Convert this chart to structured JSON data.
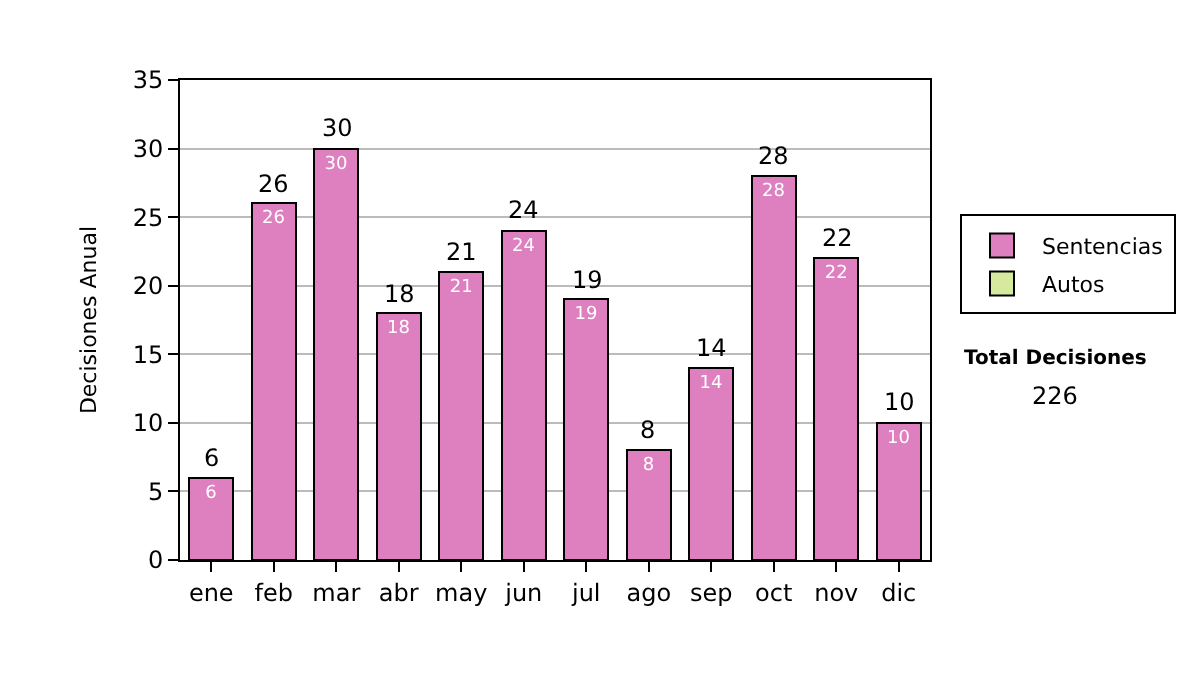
{
  "chart_data": {
    "type": "bar",
    "stacked": true,
    "ylabel": "Decisiones Anual",
    "categories": [
      "ene",
      "feb",
      "mar",
      "abr",
      "may",
      "jun",
      "jul",
      "ago",
      "sep",
      "oct",
      "nov",
      "dic"
    ],
    "series": [
      {
        "name": "Sentencias",
        "color": "#de7fc0",
        "values": [
          6,
          26,
          30,
          18,
          21,
          24,
          19,
          8,
          14,
          28,
          22,
          10
        ],
        "value_labels": [
          "6",
          "26",
          "30",
          "18",
          "21",
          "24",
          "19",
          "8",
          "14",
          "28",
          "22",
          "10"
        ]
      },
      {
        "name": "Autos",
        "color": "#d6ea9e",
        "values": [
          null,
          null,
          null,
          null,
          null,
          null,
          null,
          null,
          null,
          null,
          null,
          null
        ]
      }
    ],
    "totals": [
      "6",
      "26",
      "30",
      "18",
      "21",
      "24",
      "19",
      "8",
      "14",
      "28",
      "22",
      "10"
    ],
    "ylim": [
      0,
      35
    ],
    "yticks": [
      0,
      5,
      10,
      15,
      20,
      25,
      30,
      35
    ],
    "grid": "y",
    "legend": "right",
    "annotations": [
      "Total Decisiones",
      "226"
    ]
  }
}
